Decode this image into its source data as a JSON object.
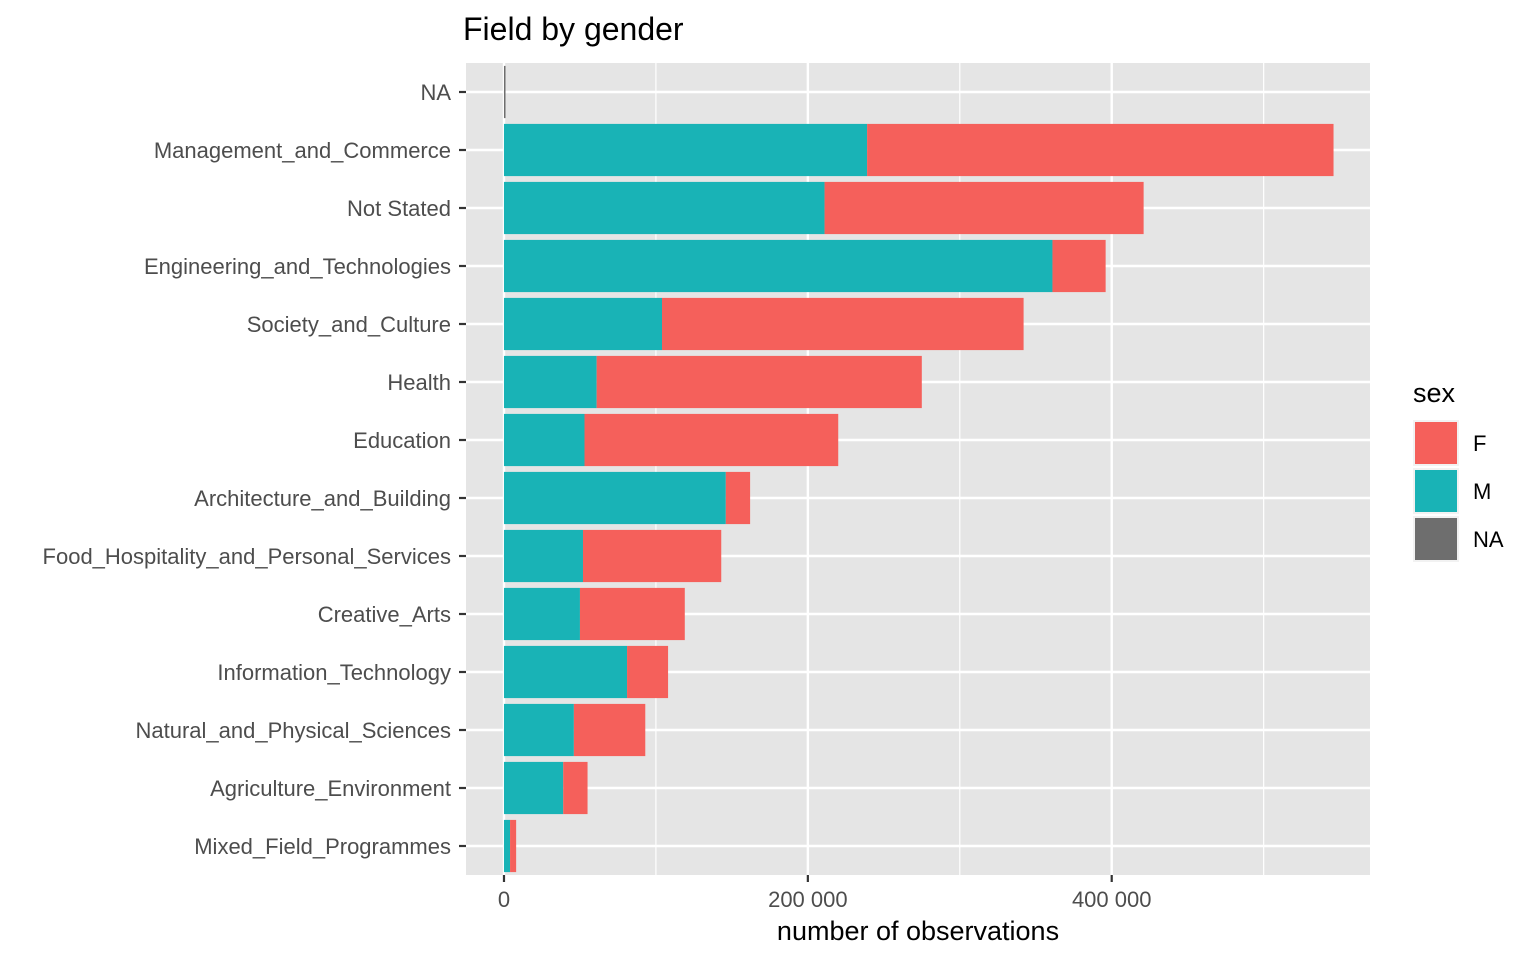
{
  "chart_data": {
    "type": "bar",
    "orientation": "horizontal",
    "stacked": true,
    "title": "Field by gender",
    "xlabel": "number of observations",
    "ylabel": "",
    "xlim": [
      -25000,
      570000
    ],
    "x_ticks": [
      {
        "value": 0,
        "label": "0"
      },
      {
        "value": 200000,
        "label": "200 000"
      },
      {
        "value": 400000,
        "label": "400 000"
      }
    ],
    "x_minor_ticks": [
      100000,
      300000,
      500000
    ],
    "categories": [
      "NA",
      "Management_and_Commerce",
      "Not Stated",
      "Engineering_and_Technologies",
      "Society_and_Culture",
      "Health",
      "Education",
      "Architecture_and_Building",
      "Food_Hospitality_and_Personal_Services",
      "Creative_Arts",
      "Information_Technology",
      "Natural_and_Physical_Sciences",
      "Agriculture_Environment",
      "Mixed_Field_Programmes"
    ],
    "series": [
      {
        "name": "M",
        "color": "#19b3b6",
        "values": [
          0,
          239000,
          211000,
          361000,
          104000,
          61000,
          53000,
          146000,
          52000,
          50000,
          81000,
          46000,
          39000,
          4000
        ]
      },
      {
        "name": "F",
        "color": "#f5605b",
        "values": [
          0,
          307000,
          210000,
          35000,
          238000,
          214000,
          167000,
          16000,
          91000,
          69000,
          27000,
          47000,
          16000,
          4000
        ]
      },
      {
        "name": "NA",
        "color": "#6e6e6e",
        "values": [
          1000,
          0,
          0,
          0,
          0,
          0,
          0,
          0,
          0,
          0,
          0,
          0,
          0,
          0
        ]
      }
    ],
    "legend": {
      "title": "sex",
      "position": "right",
      "items": [
        {
          "label": "F",
          "color": "#f5605b"
        },
        {
          "label": "M",
          "color": "#19b3b6"
        },
        {
          "label": "NA",
          "color": "#6e6e6e"
        }
      ]
    },
    "panel_background": "#e5e5e5",
    "grid": true,
    "grid_color": "#ffffff"
  }
}
